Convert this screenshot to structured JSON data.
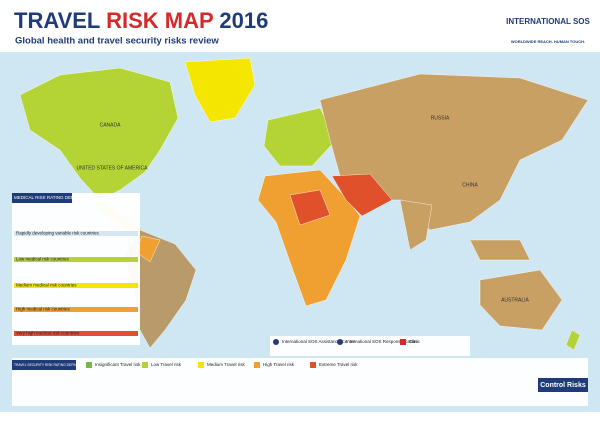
{
  "header": {
    "title": [
      "TRAVEL",
      "RISK MAP",
      "2016"
    ],
    "subtitle": "Global health and travel security risks review",
    "logo": {
      "name": "INTERNATIONAL SOS",
      "tagline": "WORLDWIDE REACH. HUMAN TOUCH."
    }
  },
  "map": {
    "labels": [
      "CANADA",
      "UNITED STATES OF AMERICA",
      "RUSSIA",
      "CHINA",
      "AUSTRALIA"
    ]
  },
  "medical_legend": {
    "title": "MEDICAL RISK RATING DEFINITIONS",
    "items": [
      "Rapidly developing variable risk countries",
      "Low medical risk countries",
      "Medium medical risk countries",
      "High medical risk countries",
      "Very high medical risk countries"
    ]
  },
  "security_legend": {
    "title": "TRAVEL SECURITY RISK RATING DEFINITIONS",
    "items": [
      "Insignificant Travel risk",
      "Low Travel risk",
      "Medium Travel risk",
      "High Travel risk",
      "Extreme Travel risk"
    ]
  },
  "centres": [
    "International SOS Assistance Centre",
    "International SOS Response Centre",
    "Clinic"
  ],
  "partner": "Control Risks"
}
